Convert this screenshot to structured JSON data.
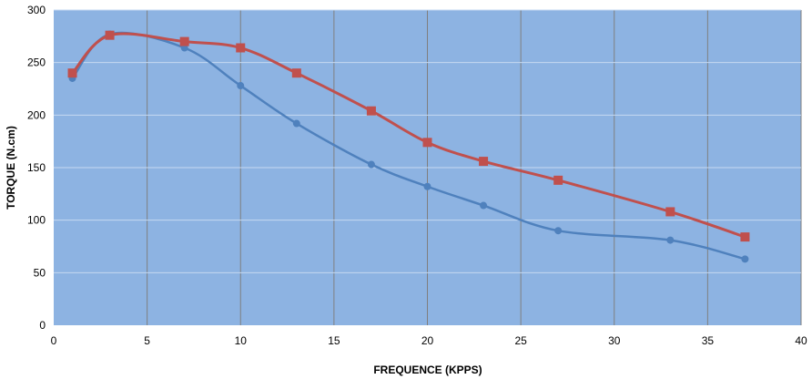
{
  "chart_data": {
    "type": "line",
    "title": "",
    "xlabel": "FREQUENCE (KPPS)",
    "ylabel": "TORQUE (N.cm)",
    "xlim": [
      0,
      40
    ],
    "ylim": [
      0,
      300
    ],
    "x_ticks": [
      0,
      5,
      10,
      15,
      20,
      25,
      30,
      35,
      40
    ],
    "y_ticks": [
      0,
      50,
      100,
      150,
      200,
      250,
      300
    ],
    "grid": true,
    "plot_background": "#8DB3E2",
    "legend": "none",
    "series": [
      {
        "color": "#4F81BD",
        "marker": "circle",
        "smooth": true,
        "points": [
          [
            1,
            235
          ],
          [
            3,
            277
          ],
          [
            7,
            264
          ],
          [
            10,
            228
          ],
          [
            13,
            192
          ],
          [
            17,
            153
          ],
          [
            20,
            132
          ],
          [
            23,
            114
          ],
          [
            27,
            90
          ],
          [
            33,
            81
          ],
          [
            37,
            63
          ]
        ]
      },
      {
        "color": "#C0504D",
        "marker": "square",
        "smooth": true,
        "points": [
          [
            1,
            240
          ],
          [
            3,
            276
          ],
          [
            7,
            270
          ],
          [
            10,
            264
          ],
          [
            13,
            240
          ],
          [
            17,
            204
          ],
          [
            20,
            174
          ],
          [
            23,
            156
          ],
          [
            27,
            138
          ],
          [
            33,
            108
          ],
          [
            37,
            84
          ]
        ]
      }
    ]
  }
}
